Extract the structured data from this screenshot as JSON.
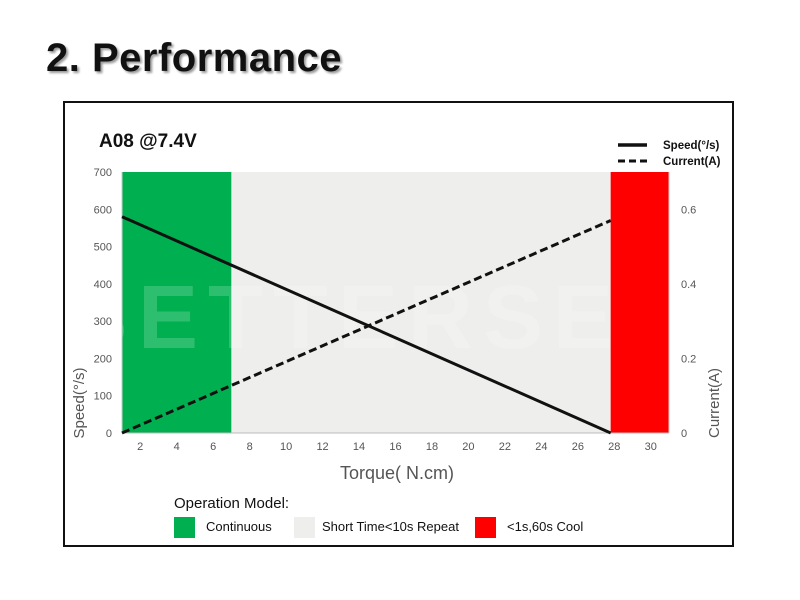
{
  "page": {
    "title": "2. Performance"
  },
  "chart_data": {
    "type": "line",
    "title": "A08   @7.4V",
    "xlabel": "Torque( N.cm)",
    "ylabel": "Speed(°/s)",
    "y2label": "Current(A)",
    "xlim": [
      1,
      31
    ],
    "ylim": [
      0,
      700
    ],
    "y2lim": [
      0,
      0.7
    ],
    "xticks": [
      "2",
      "4",
      "6",
      "8",
      "10",
      "12",
      "14",
      "16",
      "18",
      "20",
      "22",
      "24",
      "26",
      "28",
      "30"
    ],
    "yticks": [
      "0",
      "100",
      "200",
      "300",
      "400",
      "500",
      "600",
      "700"
    ],
    "y2ticks": [
      "0",
      "0.2",
      "0.4",
      "0.6"
    ],
    "watermark": "BETTERSE",
    "series": [
      {
        "name": "Speed(°/s)",
        "axis": "left",
        "style": "solid",
        "x": [
          1,
          27.8
        ],
        "y": [
          580,
          0
        ]
      },
      {
        "name": "Current(A)",
        "axis": "right",
        "style": "dashed",
        "x": [
          1,
          27.8
        ],
        "y": [
          0,
          0.57
        ]
      }
    ],
    "regions": [
      {
        "label": "Continuous",
        "from": 1,
        "to": 7,
        "color": "#00b050"
      },
      {
        "label": "Short Time<10s Repeat",
        "from": 7,
        "to": 27.8,
        "color": "#eeeeec"
      },
      {
        "label": "<1s,60s Cool",
        "from": 27.8,
        "to": 31,
        "color": "#ff0000"
      }
    ],
    "legend_position": "top-right",
    "region_legend_title": "Operation Model:"
  }
}
